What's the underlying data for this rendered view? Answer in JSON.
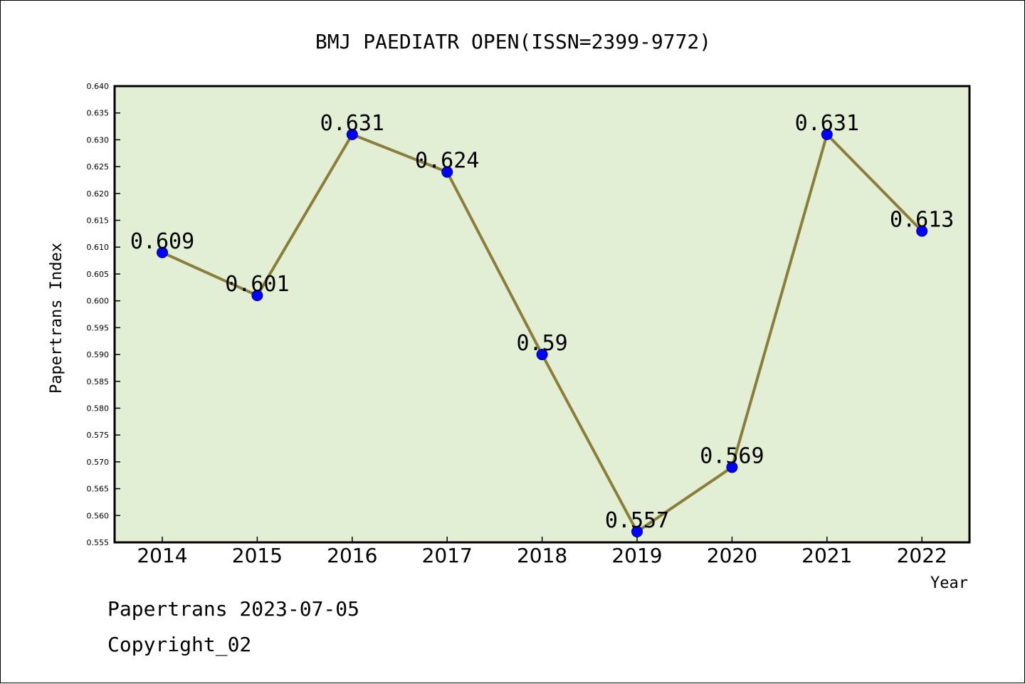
{
  "chart_data": {
    "type": "line",
    "title": "BMJ PAEDIATR OPEN(ISSN=2399-9772)",
    "xlabel": "Year",
    "ylabel": "Papertrans Index",
    "categories": [
      "2014",
      "2015",
      "2016",
      "2017",
      "2018",
      "2019",
      "2020",
      "2021",
      "2022"
    ],
    "series": [
      {
        "values": [
          0.609,
          0.601,
          0.631,
          0.624,
          0.59,
          0.557,
          0.569,
          0.631,
          0.613
        ],
        "labels": [
          "0.609",
          "0.601",
          "0.631",
          "0.624",
          "0.59",
          "0.557",
          "0.569",
          "0.631",
          "0.613"
        ]
      }
    ],
    "ylim": [
      0.555,
      0.64
    ],
    "yticks": [
      "0.555",
      "0.560",
      "0.565",
      "0.570",
      "0.575",
      "0.580",
      "0.585",
      "0.590",
      "0.595",
      "0.600",
      "0.605",
      "0.610",
      "0.615",
      "0.620",
      "0.625",
      "0.630",
      "0.635",
      "0.640"
    ],
    "grid": false,
    "legend": "none",
    "colors": {
      "plot_background": "#e2efd5",
      "line": "#8b7d3a",
      "marker": "#0000ff"
    }
  },
  "footer": {
    "date_line": "Papertrans 2023-07-05",
    "copyright": "Copyright_02"
  }
}
